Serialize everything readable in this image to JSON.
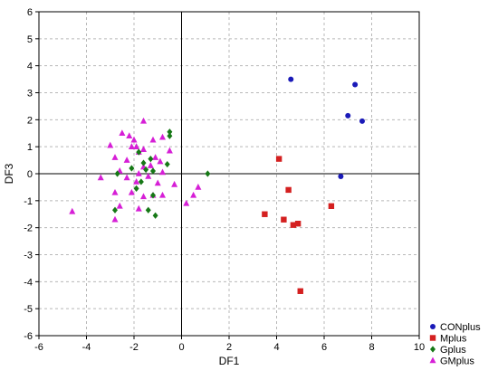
{
  "chart_data": {
    "type": "scatter",
    "xlabel": "DF1",
    "ylabel": "DF3",
    "xlim": [
      -6,
      10
    ],
    "ylim": [
      -6,
      6
    ],
    "xticks": [
      -6,
      -4,
      -2,
      0,
      2,
      4,
      6,
      8,
      10
    ],
    "yticks": [
      -6,
      -5,
      -4,
      -3,
      -2,
      -1,
      0,
      1,
      2,
      3,
      4,
      5,
      6
    ],
    "grid": "dashed",
    "reference_lines": {
      "x": 0,
      "y": 0
    },
    "legend_position": "bottom-right",
    "series": [
      {
        "name": "CONplus",
        "marker": "circle",
        "color": "#1a1ab8",
        "points": [
          [
            4.6,
            3.5
          ],
          [
            7.3,
            3.3
          ],
          [
            7.0,
            2.15
          ],
          [
            7.6,
            1.95
          ],
          [
            6.7,
            -0.1
          ]
        ]
      },
      {
        "name": "Mplus",
        "marker": "square",
        "color": "#d42020",
        "points": [
          [
            4.1,
            0.55
          ],
          [
            4.5,
            -0.6
          ],
          [
            3.5,
            -1.5
          ],
          [
            4.3,
            -1.7
          ],
          [
            4.7,
            -1.9
          ],
          [
            4.9,
            -1.85
          ],
          [
            6.3,
            -1.2
          ],
          [
            5.0,
            -4.35
          ]
        ]
      },
      {
        "name": "Gplus",
        "marker": "diamond",
        "color": "#167816",
        "points": [
          [
            -0.5,
            1.55
          ],
          [
            -0.5,
            1.4
          ],
          [
            -1.8,
            0.8
          ],
          [
            -1.3,
            0.55
          ],
          [
            -1.6,
            0.4
          ],
          [
            -0.6,
            0.35
          ],
          [
            -2.1,
            0.2
          ],
          [
            -1.5,
            0.15
          ],
          [
            -1.2,
            0.1
          ],
          [
            -2.7,
            0.0
          ],
          [
            1.1,
            0.0
          ],
          [
            -1.7,
            -0.3
          ],
          [
            -1.9,
            -0.55
          ],
          [
            -1.2,
            -0.8
          ],
          [
            -2.8,
            -1.35
          ],
          [
            -1.4,
            -1.35
          ],
          [
            -1.1,
            -1.55
          ]
        ]
      },
      {
        "name": "GMplus",
        "marker": "triangle",
        "color": "#d61fd6",
        "points": [
          [
            -1.6,
            1.95
          ],
          [
            -2.5,
            1.5
          ],
          [
            -2.2,
            1.4
          ],
          [
            -0.8,
            1.35
          ],
          [
            -2.0,
            1.25
          ],
          [
            -3.0,
            1.05
          ],
          [
            -2.1,
            1.0
          ],
          [
            -1.2,
            1.25
          ],
          [
            -1.9,
            1.0
          ],
          [
            -1.6,
            0.9
          ],
          [
            -1.8,
            0.8
          ],
          [
            -0.5,
            0.85
          ],
          [
            -2.8,
            0.6
          ],
          [
            -2.3,
            0.5
          ],
          [
            -1.1,
            0.6
          ],
          [
            -0.9,
            0.45
          ],
          [
            -1.6,
            0.25
          ],
          [
            -1.3,
            0.3
          ],
          [
            -2.6,
            0.1
          ],
          [
            -1.8,
            0.0
          ],
          [
            -1.4,
            -0.1
          ],
          [
            -0.8,
            0.05
          ],
          [
            -2.3,
            -0.15
          ],
          [
            -3.4,
            -0.15
          ],
          [
            -1.9,
            -0.3
          ],
          [
            -1.0,
            -0.35
          ],
          [
            -0.3,
            -0.4
          ],
          [
            -2.8,
            -0.7
          ],
          [
            -2.1,
            -0.7
          ],
          [
            -0.8,
            -0.8
          ],
          [
            -1.2,
            -0.8
          ],
          [
            -1.6,
            -0.85
          ],
          [
            0.7,
            -0.5
          ],
          [
            0.5,
            -0.8
          ],
          [
            0.2,
            -1.1
          ],
          [
            -2.6,
            -1.2
          ],
          [
            -1.8,
            -1.3
          ],
          [
            -2.8,
            -1.7
          ],
          [
            -4.6,
            -1.4
          ]
        ]
      }
    ]
  }
}
